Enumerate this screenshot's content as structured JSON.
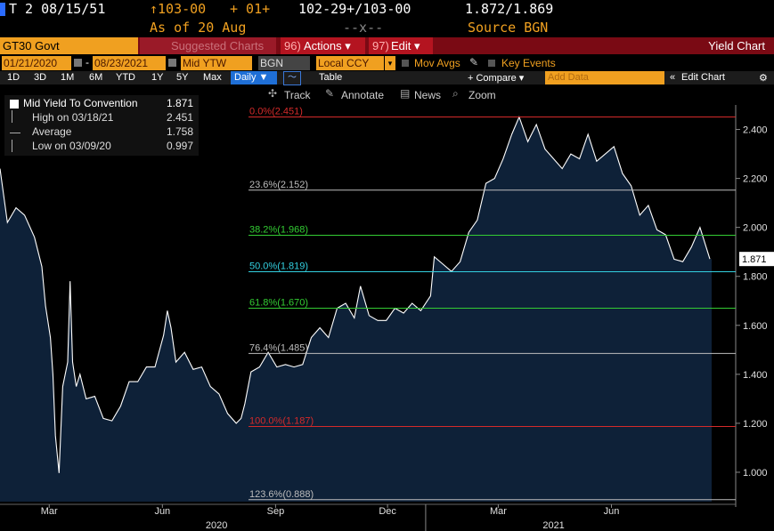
{
  "header": {
    "ticker": "T 2 08/15/51",
    "price": "↑103-00",
    "change": "+ 01+",
    "bid_ask": "102-29+/103-00",
    "yields": "1.872/1.869",
    "as_of": "As of  20 Aug",
    "separator": "--x--",
    "source": "Source BGN"
  },
  "toolbar": {
    "security": "GT30 Govt",
    "suggested": "Suggested Charts",
    "actions_num": "96)",
    "actions": "Actions ▾",
    "edit_num": "97)",
    "edit": "Edit ▾",
    "title": "Yield Chart"
  },
  "fields": {
    "start_date": "01/21/2020",
    "dash": "-",
    "end_date": "08/23/2021",
    "yield_type": "Mid YTW",
    "source": "BGN",
    "currency": "Local CCY",
    "mov_avgs": "Mov Avgs",
    "key_events": "Key Events"
  },
  "periods": {
    "items": [
      "1D",
      "3D",
      "1M",
      "6M",
      "YTD",
      "1Y",
      "5Y",
      "Max"
    ],
    "frequency": "Daily ▼",
    "table": "Table",
    "compare": "+ Compare ▾",
    "add_data": "Add Data",
    "edit_chart": "Edit Chart"
  },
  "tools": {
    "track": "Track",
    "annotate": "Annotate",
    "news": "News",
    "zoom": "Zoom"
  },
  "legend": {
    "series_label": "Mid Yield To Convention",
    "series_value": "1.871",
    "high_label": "High on 03/18/21",
    "high_value": "2.451",
    "avg_label": "Average",
    "avg_value": "1.758",
    "low_label": "Low on 03/09/20",
    "low_value": "0.997"
  },
  "colors": {
    "area_fill": "#0e2138",
    "line": "#ffffff",
    "fib_red": "#d42a2a",
    "fib_green": "#33cc33",
    "fib_cyan": "#33d0e0",
    "fib_white": "#bdbdbd",
    "accent_orange": "#f0a020"
  },
  "chart_data": {
    "type": "area",
    "title": "Yield Chart",
    "series": [
      {
        "name": "Mid Yield To Convention",
        "x": [
          "2020-01-21",
          "2020-01-27",
          "2020-02-03",
          "2020-02-10",
          "2020-02-18",
          "2020-02-24",
          "2020-02-27",
          "2020-03-02",
          "2020-03-04",
          "2020-03-06",
          "2020-03-09",
          "2020-03-12",
          "2020-03-16",
          "2020-03-18",
          "2020-03-20",
          "2020-03-23",
          "2020-03-26",
          "2020-03-31",
          "2020-04-07",
          "2020-04-14",
          "2020-04-21",
          "2020-04-28",
          "2020-05-05",
          "2020-05-12",
          "2020-05-19",
          "2020-05-26",
          "2020-06-02",
          "2020-06-05",
          "2020-06-08",
          "2020-06-12",
          "2020-06-19",
          "2020-06-26",
          "2020-07-03",
          "2020-07-10",
          "2020-07-17",
          "2020-07-24",
          "2020-07-31",
          "2020-08-04",
          "2020-08-07",
          "2020-08-12",
          "2020-08-19",
          "2020-08-26",
          "2020-09-02",
          "2020-09-09",
          "2020-09-16",
          "2020-09-23",
          "2020-09-30",
          "2020-10-07",
          "2020-10-14",
          "2020-10-21",
          "2020-10-28",
          "2020-11-04",
          "2020-11-09",
          "2020-11-16",
          "2020-11-23",
          "2020-11-30",
          "2020-12-07",
          "2020-12-14",
          "2020-12-21",
          "2020-12-28",
          "2021-01-05",
          "2021-01-08",
          "2021-01-15",
          "2021-01-22",
          "2021-01-29",
          "2021-02-05",
          "2021-02-12",
          "2021-02-19",
          "2021-02-26",
          "2021-03-05",
          "2021-03-12",
          "2021-03-18",
          "2021-03-25",
          "2021-04-01",
          "2021-04-08",
          "2021-04-15",
          "2021-04-22",
          "2021-04-29",
          "2021-05-06",
          "2021-05-13",
          "2021-05-20",
          "2021-05-27",
          "2021-06-03",
          "2021-06-10",
          "2021-06-17",
          "2021-06-24",
          "2021-07-01",
          "2021-07-08",
          "2021-07-15",
          "2021-07-22",
          "2021-07-29",
          "2021-08-05",
          "2021-08-12",
          "2021-08-20"
        ],
        "values": [
          2.24,
          2.02,
          2.08,
          2.05,
          1.96,
          1.84,
          1.68,
          1.55,
          1.4,
          1.15,
          0.997,
          1.35,
          1.45,
          1.78,
          1.45,
          1.35,
          1.4,
          1.3,
          1.31,
          1.22,
          1.21,
          1.27,
          1.37,
          1.37,
          1.43,
          1.43,
          1.56,
          1.66,
          1.59,
          1.45,
          1.49,
          1.42,
          1.43,
          1.35,
          1.32,
          1.24,
          1.2,
          1.22,
          1.28,
          1.41,
          1.43,
          1.49,
          1.43,
          1.44,
          1.43,
          1.44,
          1.55,
          1.59,
          1.55,
          1.67,
          1.69,
          1.63,
          1.76,
          1.64,
          1.62,
          1.62,
          1.67,
          1.65,
          1.69,
          1.66,
          1.72,
          1.88,
          1.85,
          1.82,
          1.86,
          1.98,
          2.03,
          2.18,
          2.2,
          2.28,
          2.38,
          2.451,
          2.35,
          2.42,
          2.32,
          2.28,
          2.24,
          2.3,
          2.28,
          2.38,
          2.27,
          2.3,
          2.33,
          2.22,
          2.17,
          2.05,
          2.09,
          1.99,
          1.97,
          1.87,
          1.86,
          1.92,
          2.0,
          1.871
        ]
      }
    ],
    "fibonacci": [
      {
        "label": "0.0%",
        "value": 2.451,
        "color": "red"
      },
      {
        "label": "23.6%",
        "value": 2.152,
        "color": "white"
      },
      {
        "label": "38.2%",
        "value": 1.968,
        "color": "green"
      },
      {
        "label": "50.0%",
        "value": 1.819,
        "color": "cyan"
      },
      {
        "label": "61.8%",
        "value": 1.67,
        "color": "green"
      },
      {
        "label": "76.4%",
        "value": 1.485,
        "color": "white"
      },
      {
        "label": "100.0%",
        "value": 1.187,
        "color": "red"
      },
      {
        "label": "123.6%",
        "value": 0.888,
        "color": "white"
      }
    ],
    "y_ticks": [
      "1.000",
      "1.200",
      "1.400",
      "1.600",
      "1.800",
      "2.000",
      "2.200",
      "2.400"
    ],
    "ylim": [
      0.88,
      2.5
    ],
    "x_month_labels": [
      {
        "label": "Mar",
        "date": "2020-03-01"
      },
      {
        "label": "Jun",
        "date": "2020-06-01"
      },
      {
        "label": "Sep",
        "date": "2020-09-01"
      },
      {
        "label": "Dec",
        "date": "2020-12-01"
      },
      {
        "label": "Mar",
        "date": "2021-03-01"
      },
      {
        "label": "Jun",
        "date": "2021-06-01"
      }
    ],
    "x_year_labels": [
      {
        "label": "2020",
        "date": "2020-07-15"
      },
      {
        "label": "2021",
        "date": "2021-04-15"
      }
    ],
    "last_value_label": "1.871",
    "xlim": [
      "2020-01-21",
      "2021-09-10"
    ]
  }
}
